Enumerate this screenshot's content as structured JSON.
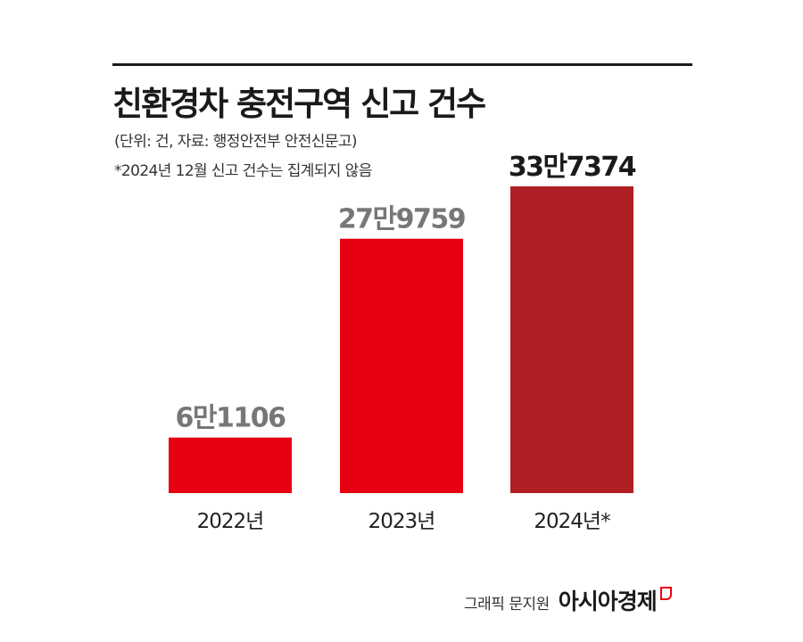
{
  "title": "친환경차 충전구역 신고 건수",
  "subtitle": "(단위: 건, 자료: 행정안전부 안전신문고)",
  "note": "*2024년 12월 신고 건수는 집계되지 않음",
  "credit": {
    "text": "그래픽 문지원",
    "brand": "아시아경제",
    "brand_mark": "logo-mark-icon"
  },
  "chart_data": {
    "type": "bar",
    "categories": [
      "2022년",
      "2023년",
      "2024년*"
    ],
    "values": [
      61106,
      279759,
      337374
    ],
    "value_labels": [
      "6만1106",
      "27만9759",
      "33만7374"
    ],
    "ylim": [
      0,
      337374
    ],
    "grid": false,
    "legend": "none",
    "colors": [
      "#e60012",
      "#e60012",
      "#b01f24"
    ],
    "label_colors": [
      "#777777",
      "#777777",
      "#1a1a1a"
    ]
  }
}
